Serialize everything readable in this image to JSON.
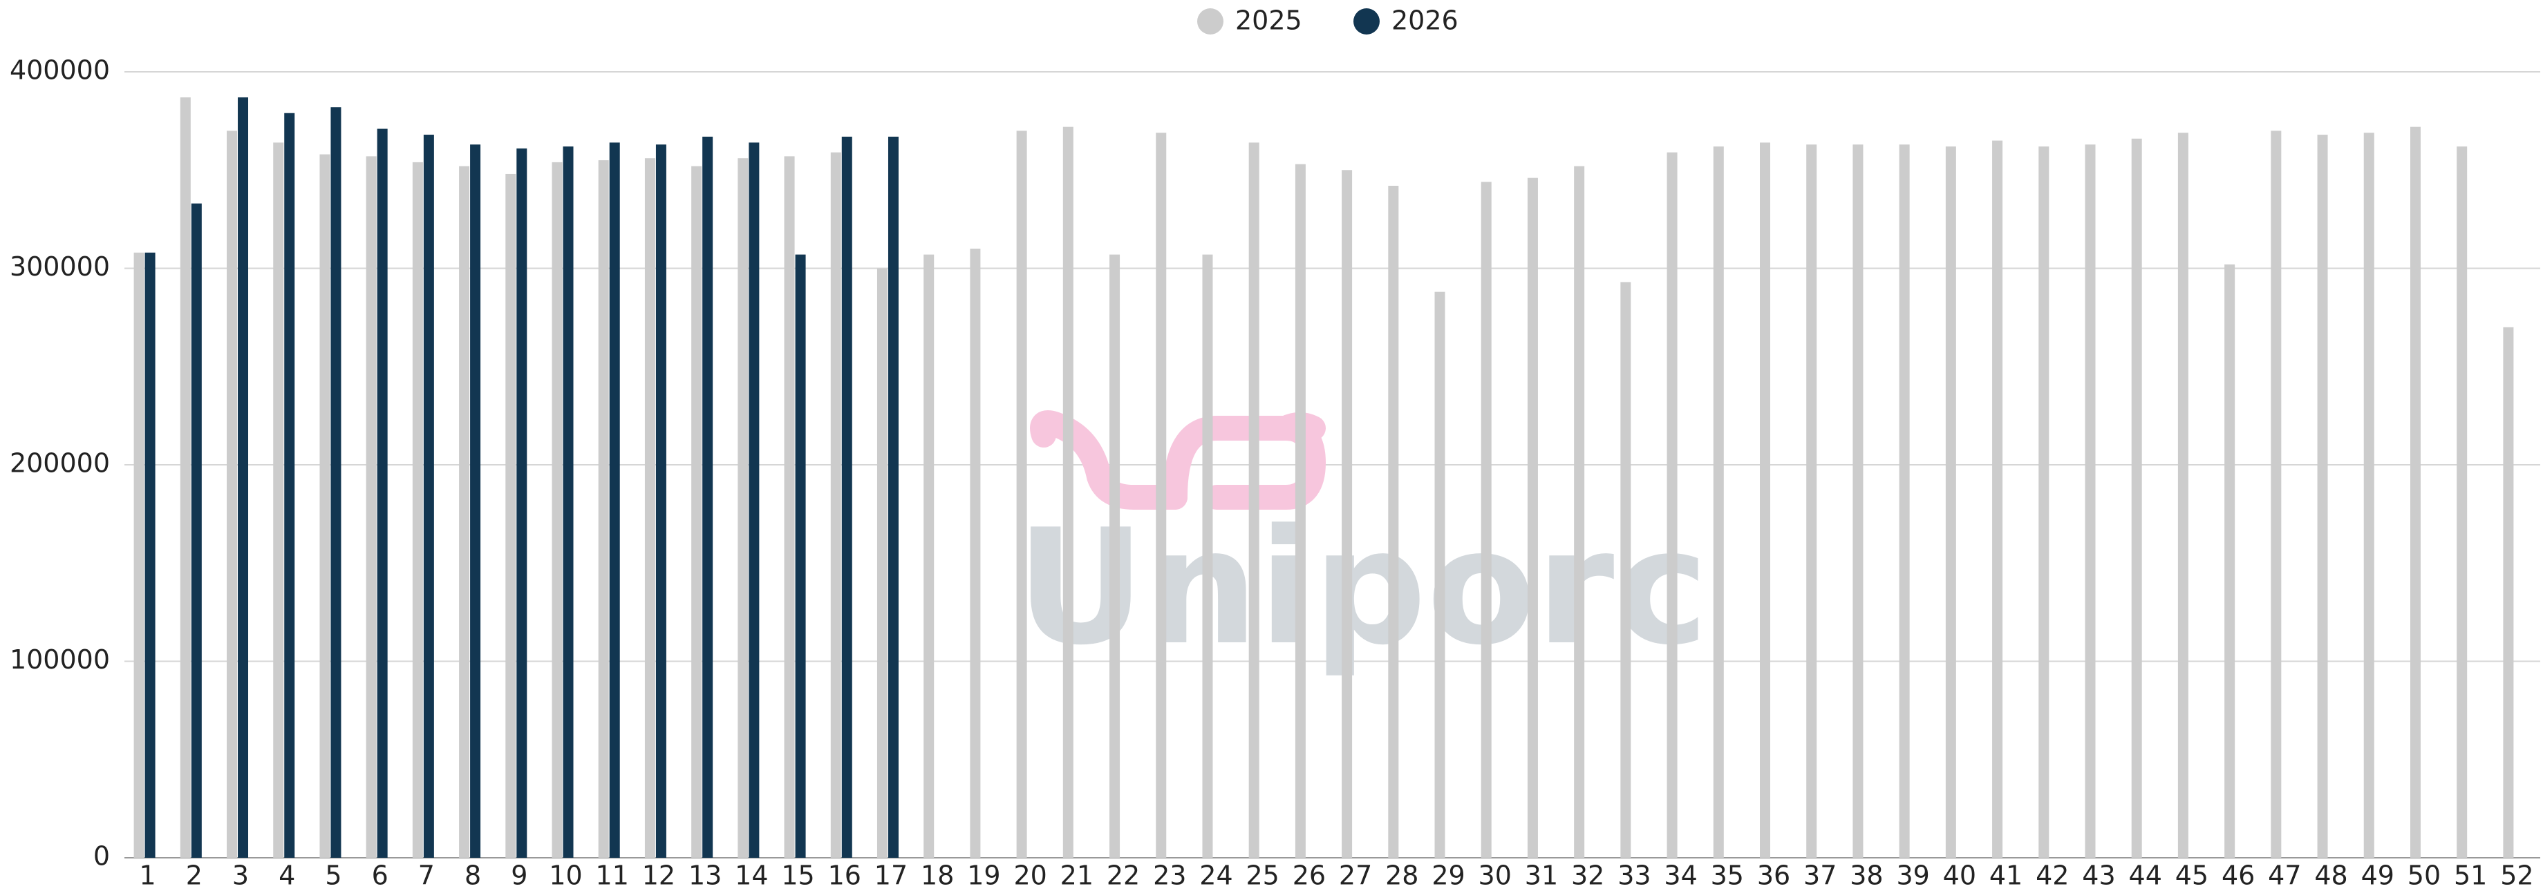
{
  "chart_data": {
    "type": "bar",
    "watermark": "Uniporc",
    "categories": [
      "1",
      "2",
      "3",
      "4",
      "5",
      "6",
      "7",
      "8",
      "9",
      "10",
      "11",
      "12",
      "13",
      "14",
      "15",
      "16",
      "17",
      "18",
      "19",
      "20",
      "21",
      "22",
      "23",
      "24",
      "25",
      "26",
      "27",
      "28",
      "29",
      "30",
      "31",
      "32",
      "33",
      "34",
      "35",
      "36",
      "37",
      "38",
      "39",
      "40",
      "41",
      "42",
      "43",
      "44",
      "45",
      "46",
      "47",
      "48",
      "49",
      "50",
      "51",
      "52"
    ],
    "series": [
      {
        "name": "2025",
        "color": "#cccccc",
        "values": [
          308000,
          387000,
          370000,
          364000,
          358000,
          357000,
          354000,
          352000,
          348000,
          354000,
          355000,
          356000,
          352000,
          356000,
          357000,
          359000,
          300000,
          307000,
          310000,
          370000,
          372000,
          307000,
          369000,
          307000,
          364000,
          353000,
          350000,
          342000,
          288000,
          344000,
          346000,
          352000,
          293000,
          359000,
          362000,
          364000,
          363000,
          363000,
          363000,
          362000,
          365000,
          362000,
          363000,
          366000,
          369000,
          302000,
          370000,
          368000,
          369000,
          372000,
          362000,
          270000
        ]
      },
      {
        "name": "2026",
        "color": "#123651",
        "values": [
          308000,
          333000,
          387000,
          379000,
          382000,
          371000,
          368000,
          363000,
          361000,
          362000,
          364000,
          363000,
          367000,
          364000,
          307000,
          367000,
          367000,
          null,
          null,
          null,
          null,
          null,
          null,
          null,
          null,
          null,
          null,
          null,
          null,
          null,
          null,
          null,
          null,
          null,
          null,
          null,
          null,
          null,
          null,
          null,
          null,
          null,
          null,
          null,
          null,
          null,
          null,
          null,
          null,
          null,
          null,
          null
        ]
      }
    ],
    "ylim": [
      0,
      400000
    ],
    "yticks": [
      0,
      100000,
      200000,
      300000,
      400000
    ],
    "grid": true,
    "legend": "top"
  }
}
